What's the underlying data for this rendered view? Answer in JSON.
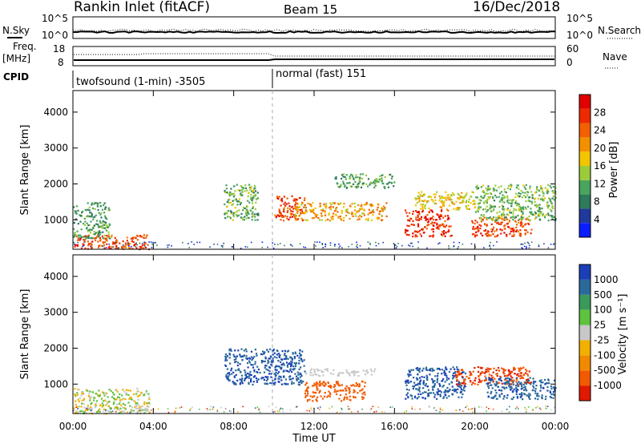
{
  "header": {
    "title": "Rankin Inlet (fitACF)",
    "beam": "Beam 15",
    "date": "16/Dec/2018"
  },
  "panels": {
    "noise": {
      "left_label": "N.Sky",
      "left_ticks": [
        "10^5",
        "10^0"
      ],
      "right_ticks": [
        "10^5",
        "10^0"
      ],
      "right_label": "N.Search"
    },
    "freq": {
      "left_label_1": "Freq.",
      "left_label_2": "[MHz]",
      "left_ticks": [
        "18",
        "8"
      ],
      "right_ticks": [
        "60",
        "0"
      ],
      "right_label": "Nave"
    },
    "cpid": {
      "label": "CPID",
      "mode1": "twofsound (1-min) -3505",
      "mode2": "normal (fast) 151"
    }
  },
  "x_axis": {
    "label": "Time UT",
    "ticks": [
      "00:00",
      "04:00",
      "08:00",
      "12:00",
      "16:00",
      "20:00",
      "00:00"
    ]
  },
  "power_panel": {
    "ylabel": "Slant Range [km]",
    "yticks": [
      "4000",
      "3000",
      "2000",
      "1000"
    ],
    "colorbar_label": "Power [dB]",
    "colorbar_ticks": [
      "28",
      "24",
      "20",
      "16",
      "12",
      "8",
      "4"
    ]
  },
  "velocity_panel": {
    "ylabel": "Slant Range [km]",
    "yticks": [
      "4000",
      "3000",
      "2000",
      "1000"
    ],
    "colorbar_label": "Velocity [m s⁻¹]",
    "colorbar_ticks": [
      "1000",
      "500",
      "100",
      "25",
      "-25",
      "-100",
      "-500",
      "-1000"
    ]
  },
  "colors": {
    "power_scale": [
      "#0a1eff",
      "#1f3a9a",
      "#2e7a5a",
      "#4aa45e",
      "#9acb3a",
      "#f2c500",
      "#f29000",
      "#f26000",
      "#ee2a00",
      "#e00000"
    ],
    "velocity_scale": [
      "#1a3fb8",
      "#2a6a9a",
      "#3a9a5a",
      "#5ec23e",
      "#c8c8c8",
      "#f2b000",
      "#f28a00",
      "#f25a00",
      "#e01a00"
    ]
  },
  "chart_data": [
    {
      "type": "heatmap",
      "title": "Power",
      "xlabel": "Time UT",
      "ylabel": "Slant Range [km]",
      "xlim_hours": [
        0,
        24
      ],
      "ylim_km": [
        180,
        4600
      ],
      "colorbar": {
        "label": "Power [dB]",
        "range": [
          0,
          30
        ]
      },
      "blobs": [
        {
          "t0": 0.0,
          "t1": 3.8,
          "r0": 200,
          "r1": 600,
          "v0": 20,
          "v1": 28
        },
        {
          "t0": 0.0,
          "t1": 1.8,
          "r0": 500,
          "r1": 1500,
          "v0": 6,
          "v1": 14
        },
        {
          "t0": 7.5,
          "t1": 9.2,
          "r0": 1000,
          "r1": 2000,
          "v0": 6,
          "v1": 16
        },
        {
          "t0": 10.0,
          "t1": 11.5,
          "r0": 1000,
          "r1": 1700,
          "v0": 20,
          "v1": 28
        },
        {
          "t0": 11.0,
          "t1": 15.6,
          "r0": 1000,
          "r1": 1500,
          "v0": 14,
          "v1": 24
        },
        {
          "t0": 13.0,
          "t1": 16.0,
          "r0": 1900,
          "r1": 2300,
          "v0": 6,
          "v1": 14
        },
        {
          "t0": 16.5,
          "t1": 18.8,
          "r0": 550,
          "r1": 1300,
          "v0": 22,
          "v1": 30
        },
        {
          "t0": 17.0,
          "t1": 20.0,
          "r0": 1300,
          "r1": 1800,
          "v0": 12,
          "v1": 20
        },
        {
          "t0": 19.8,
          "t1": 22.8,
          "r0": 550,
          "r1": 1100,
          "v0": 20,
          "v1": 28
        },
        {
          "t0": 20.0,
          "t1": 24.0,
          "r0": 1000,
          "r1": 2000,
          "v0": 8,
          "v1": 16
        }
      ]
    },
    {
      "type": "heatmap",
      "title": "Velocity",
      "xlabel": "Time UT",
      "ylabel": "Slant Range [km]",
      "xlim_hours": [
        0,
        24
      ],
      "ylim_km": [
        180,
        4600
      ],
      "colorbar": {
        "label": "Velocity [m s⁻¹]",
        "range": [
          -1000,
          1000
        ]
      },
      "blobs": [
        {
          "t0": 0.0,
          "t1": 3.8,
          "r0": 200,
          "r1": 900,
          "v0": -100,
          "v1": 100
        },
        {
          "t0": 2.8,
          "t1": 3.8,
          "r0": 200,
          "r1": 450,
          "v0": -20,
          "v1": 20
        },
        {
          "t0": 7.5,
          "t1": 11.5,
          "r0": 1000,
          "r1": 2000,
          "v0": 100,
          "v1": 800
        },
        {
          "t0": 11.5,
          "t1": 15.0,
          "r0": 1250,
          "r1": 1450,
          "v0": -20,
          "v1": 20
        },
        {
          "t0": 11.5,
          "t1": 14.5,
          "r0": 550,
          "r1": 1100,
          "v0": -400,
          "v1": -100
        },
        {
          "t0": 16.5,
          "t1": 19.5,
          "r0": 600,
          "r1": 1500,
          "v0": 100,
          "v1": 800
        },
        {
          "t0": 19.0,
          "t1": 22.8,
          "r0": 1000,
          "r1": 1500,
          "v0": -700,
          "v1": -200
        },
        {
          "t0": 20.5,
          "t1": 24.0,
          "r0": 600,
          "r1": 1200,
          "v0": 100,
          "v1": 600
        }
      ]
    }
  ]
}
